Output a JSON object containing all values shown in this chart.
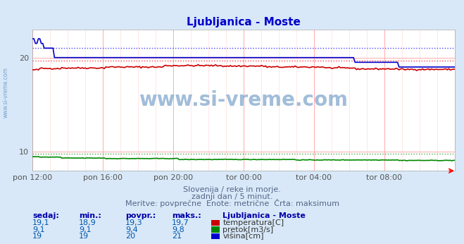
{
  "title": "Ljubljanica - Moste",
  "title_color": "#0000cc",
  "bg_color": "#d8e8f8",
  "plot_bg_color": "#ffffff",
  "grid_color_major": "#ffaaaa",
  "grid_color_minor": "#ffdddd",
  "watermark_text": "www.si-vreme.com",
  "watermark_color": "#5588bb",
  "xlim": [
    0,
    288
  ],
  "ylim": [
    8,
    23
  ],
  "yticks": [
    10,
    20
  ],
  "xtick_labels": [
    "pon 12:00",
    "pon 16:00",
    "pon 20:00",
    "tor 00:00",
    "tor 04:00",
    "tor 08:00"
  ],
  "xtick_positions": [
    0,
    48,
    96,
    144,
    192,
    240
  ],
  "temp_color": "#cc0000",
  "temp_max_color": "#ff4444",
  "flow_color": "#008800",
  "flow_max_color": "#44aa44",
  "height_color": "#0000cc",
  "height_max_color": "#4444ff",
  "temp_max": 19.7,
  "flow_max": 9.8,
  "height_max": 21,
  "subtitle1": "Slovenija / reke in morje.",
  "subtitle2": "zadnji dan / 5 minut.",
  "subtitle3": "Meritve: povprečne  Enote: metrične  Črta: maksimum",
  "legend_title": "Ljubljanica - Moste",
  "legend_labels": [
    "temperatura[C]",
    "pretok[m3/s]",
    "višina[cm]"
  ],
  "legend_colors": [
    "#cc0000",
    "#008800",
    "#0000cc"
  ],
  "table_headers": [
    "sedaj:",
    "min.:",
    "povpr.:",
    "maks.:"
  ],
  "table_rows": [
    [
      "19,1",
      "18,9",
      "19,3",
      "19,7"
    ],
    [
      "9,1",
      "9,1",
      "9,4",
      "9,8"
    ],
    [
      "19",
      "19",
      "20",
      "21"
    ]
  ]
}
